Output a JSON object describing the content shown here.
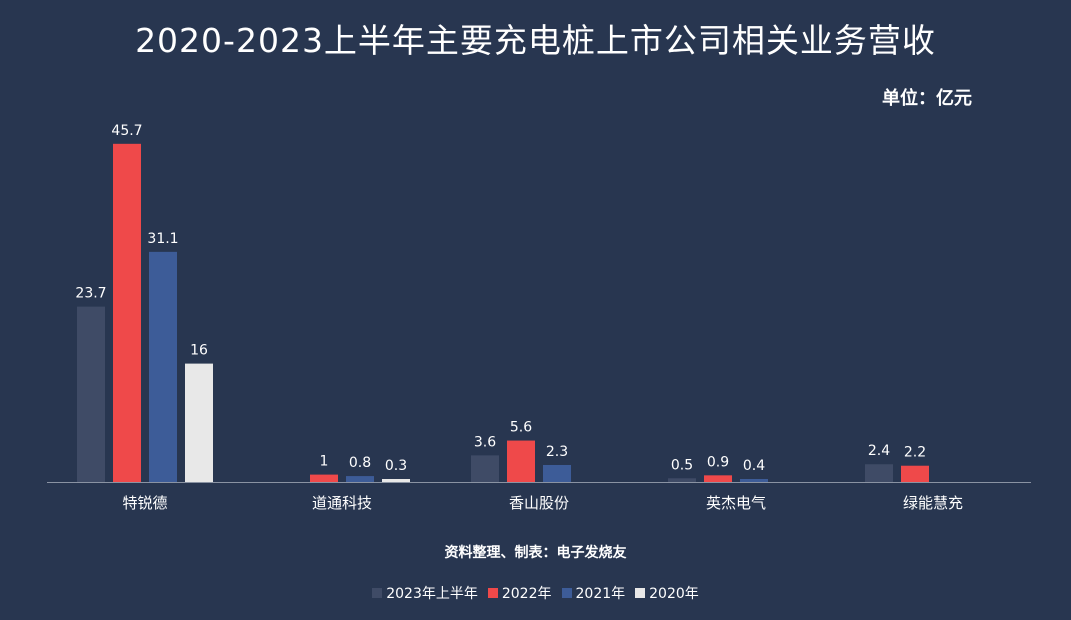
{
  "title": "2020-2023上半年主要充电桩上市公司相关业务营收",
  "unit_label": "单位：亿元",
  "source_note": "资料整理、制表：电子发烧友",
  "colors": {
    "background": "#283650",
    "axis": "#8a93a3"
  },
  "chart_data": {
    "type": "bar",
    "title": "2020-2023上半年主要充电桩上市公司相关业务营收",
    "ylabel": "单位：亿元",
    "xlabel": "",
    "ylim": [
      0,
      48
    ],
    "grid": false,
    "legend_position": "bottom",
    "categories": [
      "特锐德",
      "道通科技",
      "香山股份",
      "英杰电气",
      "绿能慧充"
    ],
    "series": [
      {
        "name": "2023年上半年",
        "color": "#3f4b66",
        "values": [
          23.7,
          null,
          3.6,
          0.5,
          2.4
        ]
      },
      {
        "name": "2022年",
        "color": "#ef494a",
        "values": [
          45.7,
          1,
          5.6,
          0.9,
          2.2
        ]
      },
      {
        "name": "2021年",
        "color": "#3d5c98",
        "values": [
          31.1,
          0.8,
          2.3,
          0.4,
          null
        ]
      },
      {
        "name": "2020年",
        "color": "#e8e8e8",
        "values": [
          16,
          0.3,
          null,
          null,
          null
        ]
      }
    ]
  }
}
